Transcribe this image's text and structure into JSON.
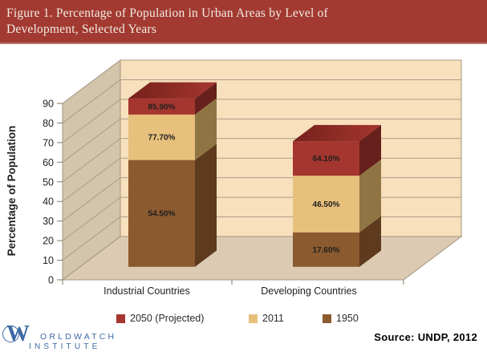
{
  "header": {
    "title": "Figure 1. Percentage of Population in Urban Areas by Level of Development, Selected Years",
    "bg_color": "#a23a32",
    "text_color": "#f2ece3"
  },
  "chart_data": {
    "type": "bar",
    "subtype": "3d-column-overlap-stacked-look",
    "title": "",
    "xlabel": "",
    "ylabel": "Percentage of Population",
    "ylim": [
      0,
      90
    ],
    "ytick_step": 10,
    "yticks": [
      "0",
      "10",
      "20",
      "30",
      "40",
      "50",
      "60",
      "70",
      "80",
      "90"
    ],
    "grid": true,
    "legend_position": "bottom",
    "categories": [
      "Industrial Countries",
      "Developing Countries"
    ],
    "series": [
      {
        "name": "2050 (Projected)",
        "values": [
          85.9,
          64.1
        ],
        "data_labels": [
          "85.90%",
          "64.10%"
        ],
        "color": "#a5362f",
        "side_color": "#67201b",
        "top_color_dark": "#74211b"
      },
      {
        "name": "2011",
        "values": [
          77.7,
          46.5
        ],
        "data_labels": [
          "77.70%",
          "46.50%"
        ],
        "color": "#e7c07c",
        "side_color": "#8f7544"
      },
      {
        "name": "1950",
        "values": [
          54.5,
          17.6
        ],
        "data_labels": [
          "54.50%",
          "17.60%"
        ],
        "color": "#8b5a2f",
        "side_color": "#5e3a1e"
      }
    ],
    "wall_colors": {
      "back_wall": "#f8e0bc",
      "side_wall": "#d3c4ac",
      "floor": "#dccbb2",
      "gridline": "#ab9d8a",
      "edge": "#a2947f"
    }
  },
  "footer": {
    "source": "Source: UNDP, 2012"
  },
  "logo": {
    "initial": "W",
    "line1": "ORLDWATCH",
    "line2": "INSTITUTE",
    "color": "#3c6aa4"
  }
}
